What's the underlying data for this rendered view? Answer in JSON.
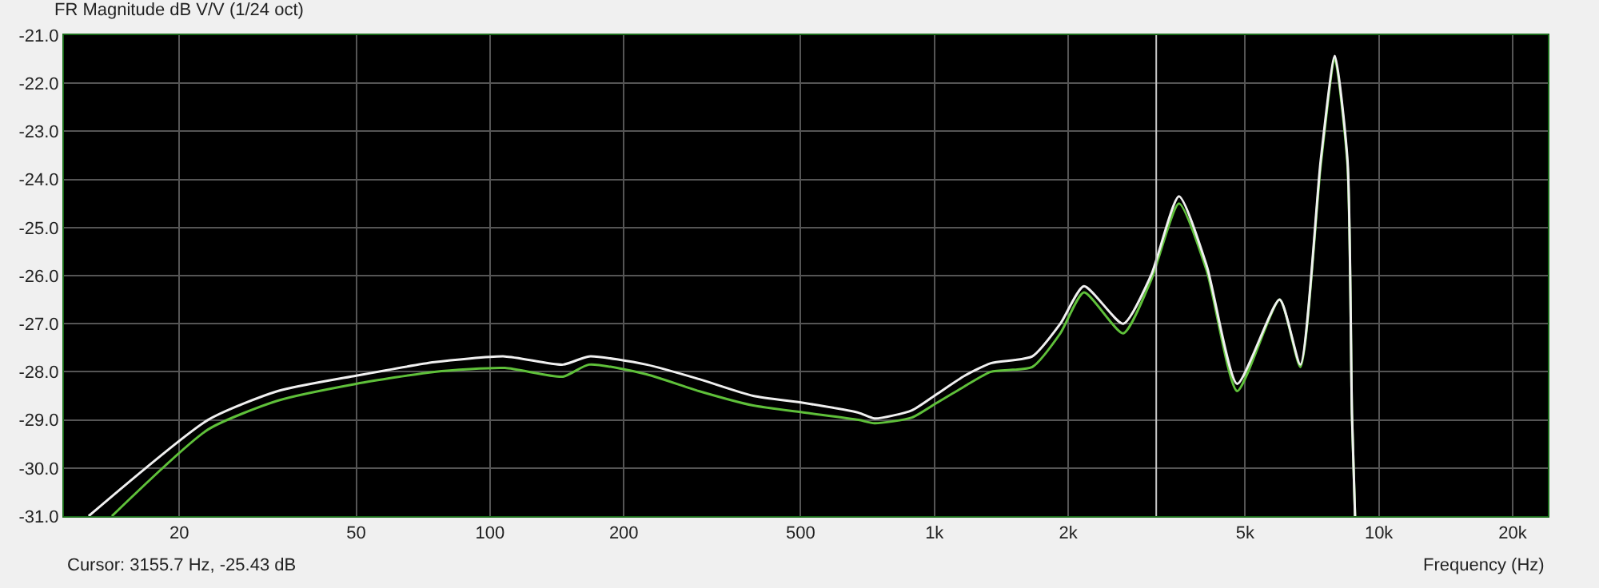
{
  "chart_data": {
    "type": "line",
    "title": "FR Magnitude dB V/V (1/24 oct)",
    "xlabel": "Frequency (Hz)",
    "log": "x",
    "grid": true,
    "xlim": [
      11,
      24000
    ],
    "xticks": [
      20,
      50,
      100,
      200,
      500,
      {
        "value": 1000,
        "label": "1k"
      },
      {
        "value": 2000,
        "label": "2k"
      },
      {
        "value": 5000,
        "label": "5k"
      },
      {
        "value": 10000,
        "label": "10k"
      },
      {
        "value": 20000,
        "label": "20k"
      }
    ],
    "ylim": [
      -31,
      -21
    ],
    "yticks": [
      {
        "value": -21,
        "label": "-21.0"
      },
      {
        "value": -22,
        "label": "-22.0"
      },
      {
        "value": -23,
        "label": "-23.0"
      },
      {
        "value": -24,
        "label": "-24.0"
      },
      {
        "value": -25,
        "label": "-25.0"
      },
      {
        "value": -26,
        "label": "-26.0"
      },
      {
        "value": -27,
        "label": "-27.0"
      },
      {
        "value": -28,
        "label": "-28.0"
      },
      {
        "value": -29,
        "label": "-29.0"
      },
      {
        "value": -30,
        "label": "-30.0"
      },
      {
        "value": -31,
        "label": "-31.0"
      }
    ],
    "ref_lines": [
      {
        "axis": "x",
        "value": 3155.7,
        "color": "#c8c8c8"
      }
    ],
    "annotations": [
      "Cursor: 3155.7 Hz, -25.43 dB"
    ],
    "series": [
      {
        "color": "#5fc03a",
        "x": [
          14.1,
          23.2,
          33.3,
          50,
          75,
          108,
          146,
          167,
          225,
          295,
          391,
          511,
          675,
          733,
          890,
          1010,
          1170,
          1340,
          1660,
          1920,
          2170,
          2660,
          3070,
          3550,
          4100,
          4800,
          5980,
          6660,
          7400,
          7960,
          8500,
          8700,
          8840
        ],
        "values": [
          -31,
          -29.2,
          -28.6,
          -28.25,
          -28.0,
          -27.92,
          -28.1,
          -27.85,
          -28.05,
          -28.4,
          -28.7,
          -28.85,
          -29.0,
          -29.07,
          -28.95,
          -28.65,
          -28.3,
          -28.0,
          -27.9,
          -27.2,
          -26.35,
          -27.2,
          -26.1,
          -24.5,
          -25.9,
          -28.4,
          -26.5,
          -27.9,
          -23.7,
          -21.5,
          -23.7,
          -28.9,
          -31
        ]
      },
      {
        "color": "#f0f0f0",
        "x": [
          12.5,
          23.2,
          33.3,
          50,
          75,
          108,
          146,
          167,
          225,
          295,
          391,
          511,
          675,
          733,
          890,
          1010,
          1170,
          1340,
          1660,
          1920,
          2170,
          2660,
          3070,
          3550,
          4100,
          4800,
          5980,
          6660,
          7400,
          7960,
          8500,
          8700,
          8840
        ],
        "values": [
          -31,
          -29.0,
          -28.4,
          -28.08,
          -27.8,
          -27.68,
          -27.85,
          -27.68,
          -27.85,
          -28.15,
          -28.5,
          -28.65,
          -28.85,
          -28.97,
          -28.8,
          -28.47,
          -28.08,
          -27.82,
          -27.68,
          -27.0,
          -26.22,
          -27.0,
          -26.0,
          -24.35,
          -25.8,
          -28.25,
          -26.5,
          -27.85,
          -23.6,
          -21.43,
          -23.6,
          -28.9,
          -31
        ]
      }
    ]
  }
}
